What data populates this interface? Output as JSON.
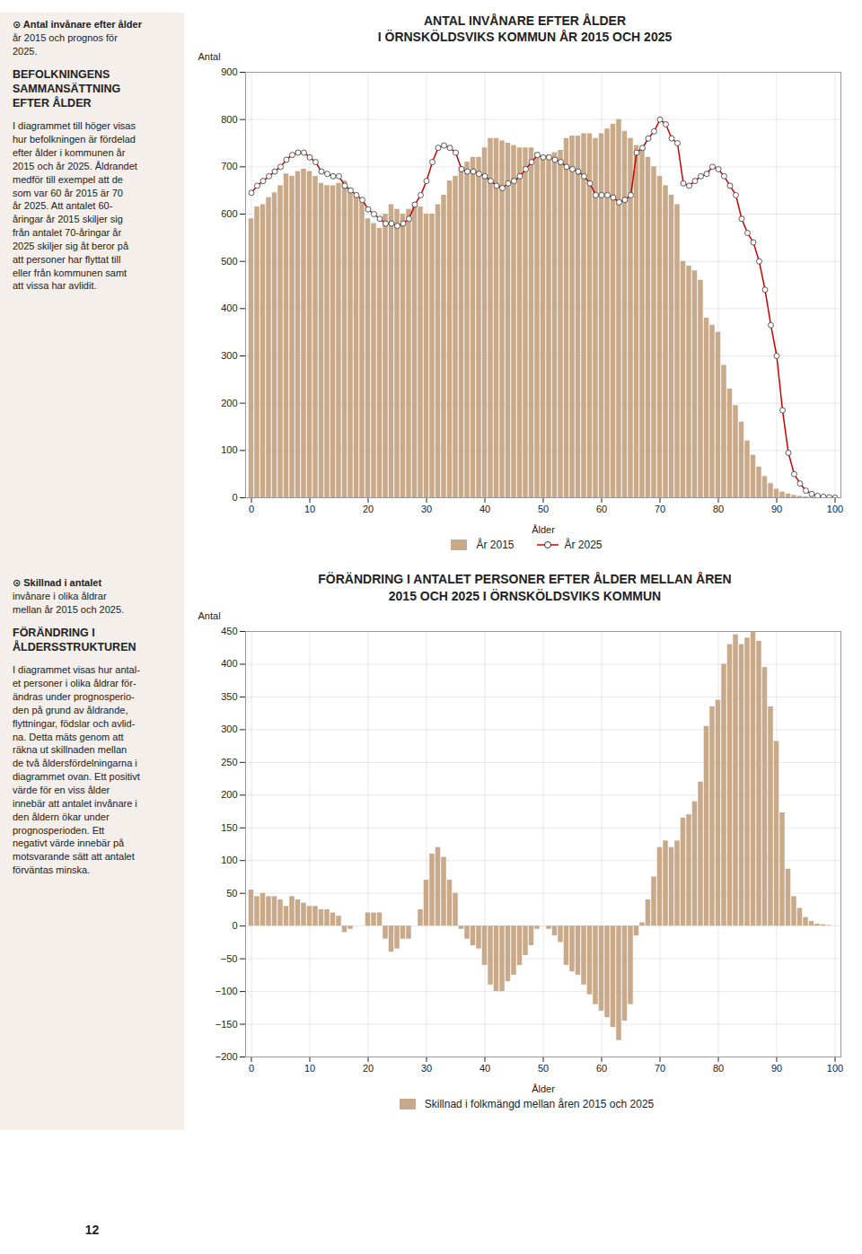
{
  "chart_data": [
    {
      "type": "bar",
      "title": "ANTAL INVÅNARE EFTER ÅLDER\nI ÖRNSKÖLDSVIKS KOMMUN ÅR 2015 OCH 2025",
      "xlabel": "Ålder",
      "ylabel": "Antal",
      "annotations": [
        "⊙ Antal invånare efter ålder\når 2015 och prognos för\n2025.",
        "BEFOLKNINGENS\nSAMMANSÄTTNING\nEFTER ÅLDER",
        "I diagrammet till höger visas\nhur befolkningen är fördelad\nefter ålder i kommunen år\n2015 och år 2025. Åldrandet\nmedför till exempel att de\nsom var 60 år 2015 är 70\når 2025. Att antalet 60-\nåringar år 2015 skiljer sig\nfrån antalet 70-åringar år\n2025 skiljer sig åt beror på\natt personer har flyttat till\neller från kommunen samt\natt vissa har avlidit."
      ],
      "x": [
        0,
        1,
        2,
        3,
        4,
        5,
        6,
        7,
        8,
        9,
        10,
        11,
        12,
        13,
        14,
        15,
        16,
        17,
        18,
        19,
        20,
        21,
        22,
        23,
        24,
        25,
        26,
        27,
        28,
        29,
        30,
        31,
        32,
        33,
        34,
        35,
        36,
        37,
        38,
        39,
        40,
        41,
        42,
        43,
        44,
        45,
        46,
        47,
        48,
        49,
        50,
        51,
        52,
        53,
        54,
        55,
        56,
        57,
        58,
        59,
        60,
        61,
        62,
        63,
        64,
        65,
        66,
        67,
        68,
        69,
        70,
        71,
        72,
        73,
        74,
        75,
        76,
        77,
        78,
        79,
        80,
        81,
        82,
        83,
        84,
        85,
        86,
        87,
        88,
        89,
        90,
        91,
        92,
        93,
        94,
        95,
        96,
        97,
        98,
        99,
        100
      ],
      "series": [
        {
          "name": "År 2015",
          "type": "bar",
          "color": "#c8aa8a",
          "values": [
            590,
            615,
            620,
            635,
            645,
            660,
            685,
            680,
            690,
            695,
            690,
            680,
            665,
            660,
            660,
            665,
            670,
            655,
            640,
            630,
            590,
            580,
            570,
            600,
            620,
            610,
            600,
            610,
            620,
            615,
            600,
            600,
            620,
            640,
            670,
            680,
            700,
            710,
            720,
            720,
            740,
            760,
            760,
            755,
            750,
            745,
            740,
            740,
            740,
            730,
            720,
            725,
            730,
            735,
            760,
            765,
            765,
            770,
            770,
            760,
            770,
            780,
            790,
            800,
            775,
            760,
            745,
            735,
            720,
            700,
            680,
            660,
            640,
            620,
            500,
            490,
            480,
            460,
            380,
            365,
            350,
            280,
            230,
            195,
            160,
            120,
            90,
            65,
            45,
            30,
            18,
            12,
            8,
            5,
            3,
            2,
            1,
            1,
            0,
            0,
            0
          ]
        },
        {
          "name": "År 2025",
          "type": "line",
          "color": "#cc0000",
          "marker": "circle",
          "line_style": "solid",
          "values": [
            645,
            660,
            670,
            680,
            690,
            700,
            715,
            725,
            730,
            730,
            720,
            710,
            690,
            685,
            680,
            680,
            660,
            650,
            640,
            630,
            610,
            600,
            590,
            580,
            580,
            575,
            580,
            590,
            620,
            640,
            670,
            710,
            740,
            745,
            740,
            730,
            695,
            690,
            690,
            685,
            680,
            670,
            660,
            655,
            665,
            670,
            680,
            695,
            710,
            725,
            720,
            720,
            715,
            710,
            700,
            695,
            690,
            680,
            665,
            640,
            640,
            640,
            635,
            625,
            630,
            640,
            730,
            740,
            760,
            775,
            800,
            790,
            760,
            750,
            665,
            660,
            670,
            680,
            685,
            700,
            695,
            680,
            660,
            640,
            590,
            560,
            540,
            500,
            440,
            365,
            300,
            185,
            95,
            50,
            30,
            15,
            8,
            4,
            2,
            1,
            0
          ]
        }
      ],
      "xlim": [
        -1,
        101
      ],
      "xticks": [
        0,
        10,
        20,
        30,
        40,
        50,
        60,
        70,
        80,
        90,
        100
      ],
      "ylim": [
        0,
        900
      ],
      "yticks": [
        0,
        100,
        200,
        300,
        400,
        500,
        600,
        700,
        800,
        900
      ],
      "grid": true,
      "legend": "bottom"
    },
    {
      "type": "bar",
      "title": "FÖRÄNDRING I ANTALET PERSONER EFTER ÅLDER MELLAN ÅREN\n2015 OCH 2025 I ÖRNSKÖLDSVIKS KOMMUN",
      "xlabel": "Ålder",
      "ylabel": "Antal",
      "annotations": [
        "⊙ Skillnad i antalet\ninvånare i olika åldrar\nmellan år  2015 och 2025.",
        "FÖRÄNDRING I\nÅLDERSSTRUKTUREN",
        "I diagrammet visas hur antal-\net personer i olika åldrar för-\nändras under prognosperio-\nden på grund av åldrande,\nflyttningar, födslar och avlid-\nna. Detta mäts genom att\nräkna ut skillnaden mellan\nde två åldersfördelningarna i\ndiagrammet ovan. Ett positivt\nvärde för en viss ålder\ninnebär att antalet invånare i\nden åldern ökar under\nprognosperioden. Ett\nnegativt värde innebär på\nmotsvarande sätt att antalet\nförväntas minska.",
        "12"
      ],
      "x": [
        0,
        1,
        2,
        3,
        4,
        5,
        6,
        7,
        8,
        9,
        10,
        11,
        12,
        13,
        14,
        15,
        16,
        17,
        18,
        19,
        20,
        21,
        22,
        23,
        24,
        25,
        26,
        27,
        28,
        29,
        30,
        31,
        32,
        33,
        34,
        35,
        36,
        37,
        38,
        39,
        40,
        41,
        42,
        43,
        44,
        45,
        46,
        47,
        48,
        49,
        50,
        51,
        52,
        53,
        54,
        55,
        56,
        57,
        58,
        59,
        60,
        61,
        62,
        63,
        64,
        65,
        66,
        67,
        68,
        69,
        70,
        71,
        72,
        73,
        74,
        75,
        76,
        77,
        78,
        79,
        80,
        81,
        82,
        83,
        84,
        85,
        86,
        87,
        88,
        89,
        90,
        91,
        92,
        93,
        94,
        95,
        96,
        97,
        98,
        99,
        100
      ],
      "series": [
        {
          "name": "Skillnad i folkmängd mellan åren 2015 och 2025",
          "type": "bar",
          "color": "#c8aa8a",
          "values": [
            55,
            45,
            50,
            45,
            45,
            40,
            30,
            45,
            40,
            35,
            30,
            30,
            25,
            25,
            20,
            15,
            -10,
            -5,
            0,
            0,
            20,
            20,
            20,
            -20,
            -40,
            -35,
            -20,
            -20,
            0,
            25,
            70,
            110,
            120,
            105,
            70,
            50,
            -5,
            -20,
            -30,
            -35,
            -60,
            -90,
            -100,
            -100,
            -85,
            -75,
            -60,
            -45,
            -30,
            -5,
            0,
            -5,
            -15,
            -25,
            -60,
            -70,
            -75,
            -90,
            -105,
            -120,
            -130,
            -140,
            -155,
            -175,
            -145,
            -120,
            -15,
            5,
            40,
            75,
            120,
            130,
            120,
            130,
            165,
            170,
            190,
            220,
            305,
            335,
            345,
            400,
            430,
            445,
            430,
            440,
            450,
            435,
            395,
            335,
            282,
            173,
            87,
            45,
            27,
            13,
            7,
            3,
            2,
            1,
            0
          ]
        }
      ],
      "xlim": [
        -1,
        101
      ],
      "xticks": [
        0,
        10,
        20,
        30,
        40,
        50,
        60,
        70,
        80,
        90,
        100
      ],
      "ylim": [
        -200,
        450
      ],
      "yticks": [
        -200,
        -150,
        -100,
        -50,
        0,
        50,
        100,
        150,
        200,
        250,
        300,
        350,
        400,
        450
      ],
      "grid": true,
      "legend": "bottom"
    }
  ]
}
